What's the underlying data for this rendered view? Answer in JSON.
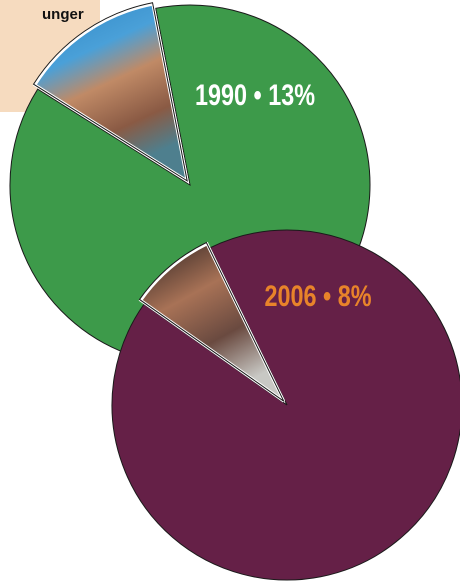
{
  "header": {
    "title": "unger"
  },
  "chart_data": [
    {
      "type": "pie",
      "values": [
        13
      ],
      "value_labels": [
        "1990 • 13%"
      ],
      "color": "#3d9a4a",
      "label_color": "#ffffff"
    },
    {
      "type": "pie",
      "values": [
        8
      ],
      "value_labels": [
        "2006 • 8%"
      ],
      "color": "#652047",
      "label_color": "#e8832a"
    }
  ]
}
